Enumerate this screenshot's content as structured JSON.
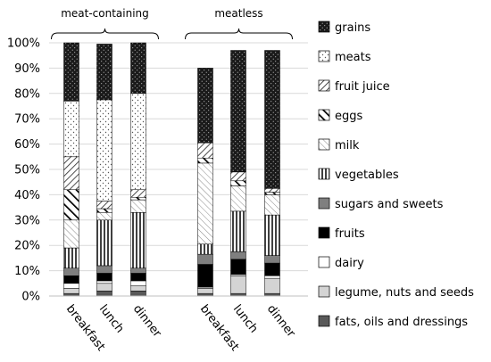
{
  "chart_data": {
    "type": "bar",
    "stacked": true,
    "ylim": [
      0,
      100
    ],
    "yticks": [
      0,
      10,
      20,
      30,
      40,
      50,
      60,
      70,
      80,
      90,
      100
    ],
    "ytick_suffix": "%",
    "groups": [
      {
        "label": "meat-containing",
        "categories": [
          "breakfast",
          "lunch",
          "dinner"
        ]
      },
      {
        "label": "meatless",
        "categories": [
          "breakfast",
          "lunch",
          "dinner"
        ]
      }
    ],
    "legend_position": "right",
    "series": [
      {
        "name": "fats, oils and dressings",
        "pattern": "gray-dark",
        "values": [
          1,
          2,
          2,
          1,
          1,
          1
        ]
      },
      {
        "name": "legume, nuts and seeds",
        "pattern": "gray-light",
        "values": [
          2,
          3,
          2,
          2,
          7,
          6
        ]
      },
      {
        "name": "dairy",
        "pattern": "white",
        "values": [
          2,
          1,
          2,
          0.5,
          0.5,
          1
        ]
      },
      {
        "name": "fruits",
        "pattern": "black",
        "values": [
          3,
          3,
          3,
          9,
          6,
          5
        ]
      },
      {
        "name": "sugars and sweets",
        "pattern": "gray-mid",
        "values": [
          3,
          3,
          2,
          4,
          3,
          3
        ]
      },
      {
        "name": "vegetables",
        "pattern": "vertical",
        "values": [
          8,
          18,
          22,
          4,
          16,
          16
        ]
      },
      {
        "name": "milk",
        "pattern": "diag-thin",
        "values": [
          11,
          3,
          5,
          32,
          10,
          8
        ]
      },
      {
        "name": "eggs",
        "pattern": "diag-thick",
        "values": [
          12,
          1.5,
          1,
          2,
          2,
          1
        ]
      },
      {
        "name": "fruit juice",
        "pattern": "diag-back",
        "values": [
          13,
          3,
          3,
          6,
          3.5,
          1.5
        ]
      },
      {
        "name": "meats",
        "pattern": "dots",
        "values": [
          22,
          40,
          38,
          0,
          0,
          0
        ]
      },
      {
        "name": "grains",
        "pattern": "black-dots",
        "values": [
          23,
          22,
          20,
          29.5,
          48,
          54.5
        ]
      }
    ]
  }
}
